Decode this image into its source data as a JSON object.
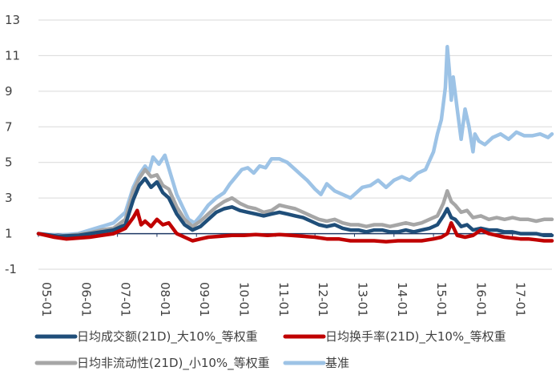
{
  "chart_data": {
    "type": "line",
    "title": "",
    "xlabel": "",
    "ylabel": "",
    "ylim": [
      -1,
      13
    ],
    "yticks": [
      -1,
      1,
      3,
      5,
      7,
      9,
      11,
      13
    ],
    "xlim": [
      2005.0,
      2018.0
    ],
    "xticks": [
      {
        "label": "05-01",
        "t": 2005.0
      },
      {
        "label": "06-01",
        "t": 2006.0
      },
      {
        "label": "07-01",
        "t": 2007.0
      },
      {
        "label": "08-01",
        "t": 2008.0
      },
      {
        "label": "09-01",
        "t": 2009.0
      },
      {
        "label": "10-01",
        "t": 2010.0
      },
      {
        "label": "11-01",
        "t": 2011.0
      },
      {
        "label": "12-01",
        "t": 2012.0
      },
      {
        "label": "13-01",
        "t": 2013.0
      },
      {
        "label": "14-01",
        "t": 2014.0
      },
      {
        "label": "15-01",
        "t": 2015.0
      },
      {
        "label": "16-01",
        "t": 2016.0
      },
      {
        "label": "17-01",
        "t": 2017.0
      }
    ],
    "grid": true,
    "legend_position": "bottom",
    "series": [
      {
        "name": "基准",
        "color": "#9DC3E6",
        "width": 4.5,
        "x": [
          2005.0,
          2005.5,
          2006.0,
          2006.3,
          2006.6,
          2006.9,
          2007.2,
          2007.4,
          2007.55,
          2007.7,
          2007.8,
          2007.9,
          2008.05,
          2008.2,
          2008.35,
          2008.5,
          2008.65,
          2008.8,
          2008.95,
          2009.1,
          2009.3,
          2009.5,
          2009.7,
          2009.85,
          2010.0,
          2010.15,
          2010.3,
          2010.45,
          2010.6,
          2010.75,
          2010.9,
          2011.1,
          2011.3,
          2011.5,
          2011.65,
          2011.8,
          2012.0,
          2012.15,
          2012.3,
          2012.5,
          2012.7,
          2012.9,
          2013.05,
          2013.2,
          2013.4,
          2013.6,
          2013.8,
          2014.0,
          2014.2,
          2014.4,
          2014.6,
          2014.8,
          2015.0,
          2015.1,
          2015.2,
          2015.3,
          2015.35,
          2015.4,
          2015.45,
          2015.5,
          2015.6,
          2015.7,
          2015.8,
          2015.9,
          2016.0,
          2016.05,
          2016.15,
          2016.3,
          2016.5,
          2016.7,
          2016.9,
          2017.1,
          2017.3,
          2017.5,
          2017.7,
          2017.9,
          2018.0
        ],
        "values": [
          1.0,
          0.9,
          1.0,
          1.2,
          1.4,
          1.6,
          2.2,
          3.6,
          4.3,
          4.8,
          4.5,
          5.3,
          4.9,
          5.4,
          4.3,
          3.2,
          2.5,
          1.8,
          1.6,
          2.0,
          2.6,
          3.0,
          3.3,
          3.8,
          4.2,
          4.6,
          4.7,
          4.4,
          4.8,
          4.7,
          5.2,
          5.2,
          5.0,
          4.6,
          4.3,
          4.0,
          3.5,
          3.2,
          3.8,
          3.4,
          3.2,
          3.0,
          3.3,
          3.6,
          3.7,
          4.0,
          3.6,
          4.0,
          4.2,
          4.0,
          4.4,
          4.6,
          5.6,
          6.6,
          7.4,
          9.2,
          11.5,
          10.2,
          8.5,
          9.8,
          8.0,
          6.3,
          8.0,
          7.0,
          5.6,
          6.6,
          6.2,
          6.0,
          6.4,
          6.6,
          6.3,
          6.7,
          6.5,
          6.5,
          6.6,
          6.4,
          6.6
        ]
      },
      {
        "name": "日均非流动性(21D)_小10%_等权重",
        "color": "#A6A6A6",
        "width": 4.5,
        "x": [
          2005.0,
          2005.5,
          2006.0,
          2006.3,
          2006.6,
          2006.9,
          2007.2,
          2007.4,
          2007.55,
          2007.7,
          2007.85,
          2008.0,
          2008.15,
          2008.3,
          2008.5,
          2008.7,
          2008.9,
          2009.1,
          2009.3,
          2009.5,
          2009.7,
          2009.9,
          2010.1,
          2010.3,
          2010.5,
          2010.7,
          2010.9,
          2011.1,
          2011.3,
          2011.5,
          2011.7,
          2011.9,
          2012.1,
          2012.3,
          2012.5,
          2012.7,
          2012.9,
          2013.1,
          2013.3,
          2013.5,
          2013.7,
          2013.9,
          2014.1,
          2014.3,
          2014.5,
          2014.7,
          2014.9,
          2015.1,
          2015.25,
          2015.35,
          2015.45,
          2015.55,
          2015.7,
          2015.85,
          2016.0,
          2016.2,
          2016.4,
          2016.6,
          2016.8,
          2017.0,
          2017.2,
          2017.4,
          2017.6,
          2017.8,
          2018.0
        ],
        "values": [
          1.0,
          0.85,
          0.95,
          1.05,
          1.2,
          1.3,
          1.8,
          3.4,
          4.1,
          4.6,
          4.2,
          4.3,
          3.7,
          3.5,
          2.5,
          1.8,
          1.4,
          1.7,
          2.1,
          2.5,
          2.8,
          3.0,
          2.7,
          2.5,
          2.4,
          2.2,
          2.3,
          2.6,
          2.5,
          2.4,
          2.2,
          2.0,
          1.8,
          1.7,
          1.8,
          1.6,
          1.5,
          1.5,
          1.4,
          1.5,
          1.5,
          1.4,
          1.5,
          1.6,
          1.5,
          1.6,
          1.8,
          2.0,
          2.7,
          3.4,
          2.8,
          2.6,
          2.2,
          2.3,
          1.9,
          2.0,
          1.8,
          1.9,
          1.8,
          1.9,
          1.8,
          1.8,
          1.7,
          1.8,
          1.8
        ]
      },
      {
        "name": "日均成交额(21D)_大10%_等权重",
        "color": "#1F4E79",
        "width": 4.5,
        "x": [
          2005.0,
          2005.5,
          2006.0,
          2006.3,
          2006.6,
          2006.9,
          2007.2,
          2007.4,
          2007.55,
          2007.7,
          2007.85,
          2008.0,
          2008.15,
          2008.3,
          2008.5,
          2008.7,
          2008.9,
          2009.1,
          2009.3,
          2009.5,
          2009.7,
          2009.9,
          2010.1,
          2010.3,
          2010.5,
          2010.7,
          2010.9,
          2011.1,
          2011.3,
          2011.5,
          2011.7,
          2011.9,
          2012.1,
          2012.3,
          2012.5,
          2012.7,
          2012.9,
          2013.1,
          2013.3,
          2013.5,
          2013.7,
          2013.9,
          2014.1,
          2014.3,
          2014.5,
          2014.7,
          2014.9,
          2015.1,
          2015.25,
          2015.35,
          2015.45,
          2015.55,
          2015.7,
          2015.85,
          2016.0,
          2016.2,
          2016.4,
          2016.6,
          2016.8,
          2017.0,
          2017.2,
          2017.4,
          2017.6,
          2017.8,
          2018.0
        ],
        "values": [
          1.0,
          0.85,
          0.9,
          1.0,
          1.1,
          1.2,
          1.5,
          2.9,
          3.7,
          4.1,
          3.6,
          3.9,
          3.3,
          3.0,
          2.1,
          1.5,
          1.2,
          1.4,
          1.8,
          2.2,
          2.4,
          2.5,
          2.3,
          2.2,
          2.1,
          2.0,
          2.1,
          2.2,
          2.1,
          2.0,
          1.9,
          1.7,
          1.5,
          1.4,
          1.5,
          1.3,
          1.2,
          1.2,
          1.1,
          1.2,
          1.2,
          1.1,
          1.1,
          1.2,
          1.1,
          1.2,
          1.3,
          1.5,
          2.0,
          2.4,
          1.9,
          1.8,
          1.4,
          1.5,
          1.2,
          1.3,
          1.2,
          1.2,
          1.1,
          1.1,
          1.0,
          1.0,
          1.0,
          0.9,
          0.9
        ]
      },
      {
        "name": "日均换手率(21D)_大10%_等权重",
        "color": "#C00000",
        "width": 4.5,
        "x": [
          2005.0,
          2005.4,
          2005.7,
          2006.0,
          2006.3,
          2006.6,
          2006.9,
          2007.2,
          2007.4,
          2007.5,
          2007.6,
          2007.7,
          2007.85,
          2008.0,
          2008.15,
          2008.3,
          2008.5,
          2008.7,
          2008.9,
          2009.1,
          2009.3,
          2009.6,
          2009.9,
          2010.2,
          2010.5,
          2010.8,
          2011.1,
          2011.4,
          2011.7,
          2012.0,
          2012.3,
          2012.6,
          2012.9,
          2013.2,
          2013.5,
          2013.8,
          2014.1,
          2014.4,
          2014.7,
          2015.0,
          2015.2,
          2015.35,
          2015.45,
          2015.6,
          2015.8,
          2016.0,
          2016.2,
          2016.4,
          2016.6,
          2016.8,
          2017.0,
          2017.2,
          2017.4,
          2017.6,
          2017.8,
          2018.0
        ],
        "values": [
          1.0,
          0.8,
          0.7,
          0.75,
          0.8,
          0.9,
          1.0,
          1.3,
          1.9,
          2.3,
          1.5,
          1.7,
          1.4,
          1.8,
          1.5,
          1.6,
          1.0,
          0.8,
          0.6,
          0.7,
          0.8,
          0.85,
          0.9,
          0.9,
          0.95,
          0.9,
          0.95,
          0.9,
          0.85,
          0.8,
          0.7,
          0.7,
          0.6,
          0.6,
          0.6,
          0.55,
          0.6,
          0.6,
          0.6,
          0.7,
          0.8,
          1.0,
          1.6,
          0.9,
          0.8,
          0.9,
          1.2,
          1.0,
          0.9,
          0.8,
          0.75,
          0.7,
          0.7,
          0.65,
          0.6,
          0.6
        ]
      }
    ],
    "legend": [
      {
        "name": "日均成交额(21D)_大10%_等权重",
        "color": "#1F4E79"
      },
      {
        "name": "日均换手率(21D)_大10%_等权重",
        "color": "#C00000"
      },
      {
        "name": "日均非流动性(21D)_小10%_等权重",
        "color": "#A6A6A6"
      },
      {
        "name": "基准",
        "color": "#9DC3E6"
      }
    ]
  }
}
